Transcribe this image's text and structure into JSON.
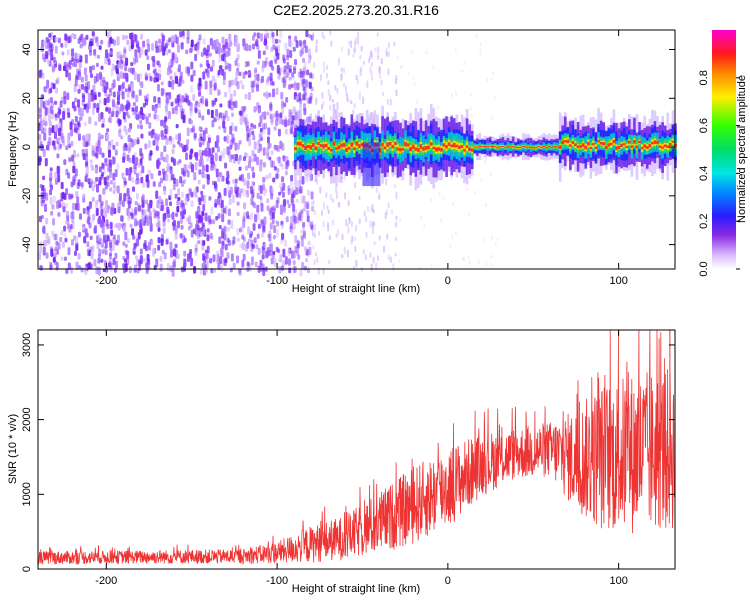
{
  "figure": {
    "title": "C2E2.2025.273.20.31.R16"
  },
  "chart_data": [
    {
      "type": "heatmap",
      "name": "spectrogram",
      "xlabel": "Height of straight line (km)",
      "ylabel": "Frequency (Hz)",
      "xlim": [
        -240,
        133
      ],
      "ylim": [
        -50,
        48
      ],
      "xticks": [
        -200,
        -100,
        0,
        100
      ],
      "xtick_labels": [
        "-200",
        "-100",
        "0",
        "100"
      ],
      "yticks": [
        -40,
        -20,
        0,
        20,
        40
      ],
      "ytick_labels": [
        "-40",
        "-20",
        "0",
        "20",
        "40"
      ],
      "signal_start_km": -90,
      "noise_dense_until_km": -80,
      "noise_sparse_until_km": -30,
      "carrier_segments": [
        {
          "x_start": -90,
          "x_end": 15,
          "freq_hz": 0,
          "width_hz": 6
        },
        {
          "x_start": 15,
          "x_end": 65,
          "freq_hz": 0,
          "width_hz": 2
        },
        {
          "x_start": 65,
          "x_end": 133,
          "freq_hz": 1,
          "width_hz": 5
        }
      ],
      "colorbar": {
        "label": "Normalized spectral amplitude",
        "range": [
          0,
          1
        ],
        "ticks": [
          0.0,
          0.2,
          0.4,
          0.6,
          0.8
        ],
        "tick_labels": [
          "0.0",
          "0.2",
          "0.4",
          "0.6",
          "0.8"
        ]
      }
    },
    {
      "type": "line",
      "name": "snr",
      "xlabel": "Height of straight line (km)",
      "ylabel": "SNR (10 * v/v)",
      "color": "#ee3333",
      "xlim": [
        -240,
        133
      ],
      "ylim": [
        0,
        3200
      ],
      "xticks": [
        -200,
        -100,
        0,
        100
      ],
      "xtick_labels": [
        "-200",
        "-100",
        "0",
        "100"
      ],
      "yticks": [
        0,
        1000,
        2000,
        3000
      ],
      "ytick_labels": [
        "0",
        "1000",
        "2000",
        "3000"
      ],
      "envelope": [
        {
          "x": -240,
          "mean": 150,
          "spread": 90
        },
        {
          "x": -180,
          "mean": 160,
          "spread": 90
        },
        {
          "x": -120,
          "mean": 170,
          "spread": 100
        },
        {
          "x": -100,
          "mean": 220,
          "spread": 150
        },
        {
          "x": -80,
          "mean": 330,
          "spread": 250
        },
        {
          "x": -60,
          "mean": 420,
          "spread": 300
        },
        {
          "x": -40,
          "mean": 620,
          "spread": 420
        },
        {
          "x": -20,
          "mean": 850,
          "spread": 520
        },
        {
          "x": 0,
          "mean": 1100,
          "spread": 550
        },
        {
          "x": 20,
          "mean": 1400,
          "spread": 420
        },
        {
          "x": 40,
          "mean": 1550,
          "spread": 350
        },
        {
          "x": 60,
          "mean": 1600,
          "spread": 380
        },
        {
          "x": 75,
          "mean": 1450,
          "spread": 700
        },
        {
          "x": 90,
          "mean": 1500,
          "spread": 1000
        },
        {
          "x": 110,
          "mean": 1550,
          "spread": 1100
        },
        {
          "x": 133,
          "mean": 1600,
          "spread": 1100
        }
      ],
      "peak": {
        "x": 130,
        "y": 3200
      }
    }
  ]
}
